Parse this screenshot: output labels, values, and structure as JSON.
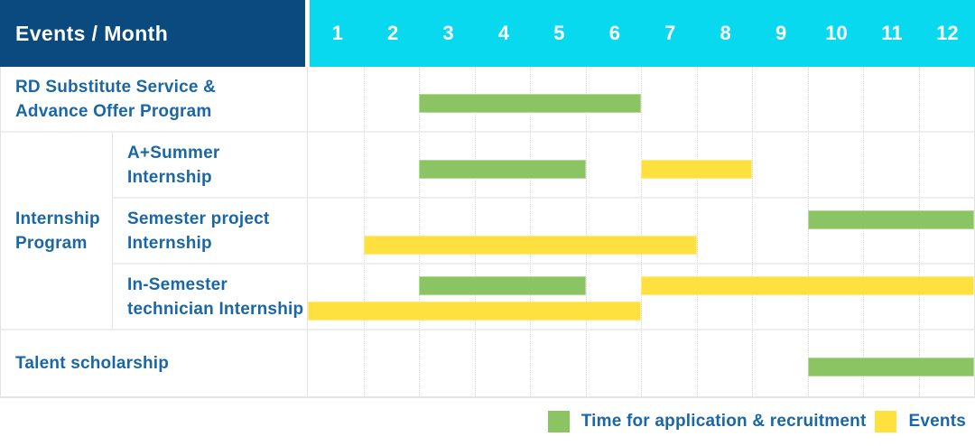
{
  "chart_data": {
    "type": "gantt",
    "title": "Events / Month",
    "months": [
      "1",
      "2",
      "3",
      "4",
      "5",
      "6",
      "7",
      "8",
      "9",
      "10",
      "11",
      "12"
    ],
    "rows": [
      {
        "indent": false,
        "label_lines": [
          "RD Substitute Service &",
          "Advance Offer Program"
        ],
        "bars": [
          {
            "series": "recruitment",
            "start_month": 3,
            "end_month": 6,
            "lane": "center"
          }
        ]
      },
      {
        "group_lines": [
          "Internship",
          "Program"
        ],
        "group_span": 3,
        "indent": true,
        "label_lines": [
          "A+Summer",
          "Internship"
        ],
        "bars": [
          {
            "series": "recruitment",
            "start_month": 3,
            "end_month": 5,
            "lane": "center"
          },
          {
            "series": "events",
            "start_month": 7,
            "end_month": 8,
            "lane": "center"
          }
        ]
      },
      {
        "indent": true,
        "label_lines": [
          "Semester project",
          "Internship"
        ],
        "bars": [
          {
            "series": "recruitment",
            "start_month": 10,
            "end_month": 12,
            "lane": "top"
          },
          {
            "series": "events",
            "start_month": 2,
            "end_month": 7,
            "lane": "bottom"
          }
        ]
      },
      {
        "indent": true,
        "label_lines": [
          "In-Semester",
          "technician Internship"
        ],
        "bars": [
          {
            "series": "recruitment",
            "start_month": 3,
            "end_month": 5,
            "lane": "top"
          },
          {
            "series": "events",
            "start_month": 7,
            "end_month": 12,
            "lane": "top"
          },
          {
            "series": "events",
            "start_month": 1,
            "end_month": 6,
            "lane": "bottom"
          }
        ]
      },
      {
        "indent": false,
        "label_lines": [
          "Talent scholarship"
        ],
        "bars": [
          {
            "series": "recruitment",
            "start_month": 10,
            "end_month": 12,
            "lane": "center"
          }
        ]
      }
    ],
    "legend": [
      {
        "key": "recruitment",
        "label": "Time for application & recruitment",
        "color": "#8bc563"
      },
      {
        "key": "events",
        "label": "Events",
        "color": "#fee13e"
      }
    ],
    "axis": {
      "month_min": 1,
      "month_max": 12
    },
    "colors": {
      "header_bg": "#0b4a7f",
      "months_bg": "#09d9ee",
      "label_text": "#1b67a6",
      "recruitment_green": "#8bc563",
      "events_yellow": "#fee13e",
      "grid_line": "#d9d9d9",
      "cell_border": "#e2e2e2"
    }
  }
}
